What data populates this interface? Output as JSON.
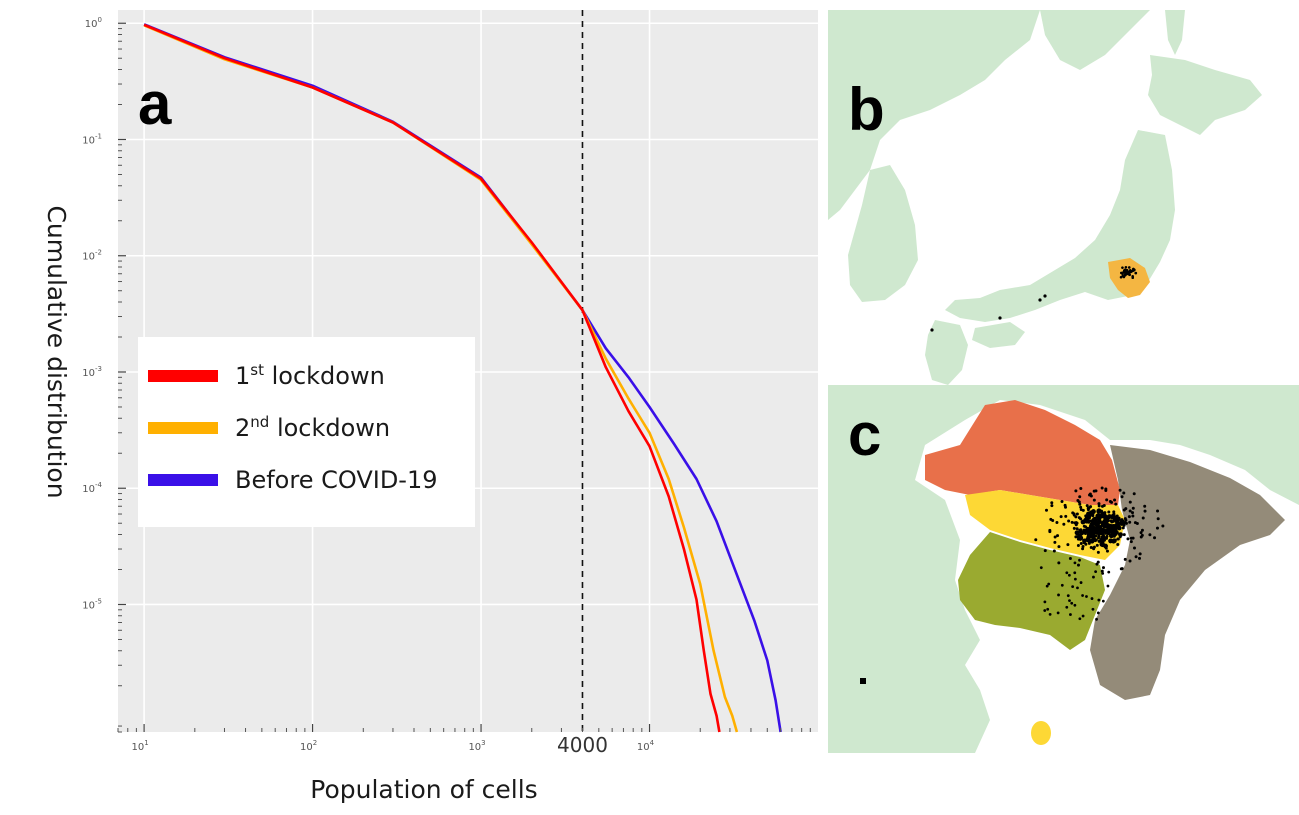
{
  "panels": {
    "a": "a",
    "b": "b",
    "c": "c"
  },
  "chart_data": {
    "type": "line",
    "title": "",
    "xlabel": "Population of cells",
    "ylabel": "Cumulative distribution",
    "x_scale": "log",
    "y_scale": "log",
    "xlim": [
      7,
      100000
    ],
    "ylim": [
      8e-07,
      1.3
    ],
    "x_ticks": [
      {
        "value": 10,
        "base": "10",
        "exp": "1"
      },
      {
        "value": 100,
        "base": "10",
        "exp": "2"
      },
      {
        "value": 1000,
        "base": "10",
        "exp": "3"
      },
      {
        "value": 10000,
        "base": "10",
        "exp": "4"
      }
    ],
    "y_ticks": [
      {
        "value": 1,
        "base": "10",
        "exp": "0"
      },
      {
        "value": 0.1,
        "base": "10",
        "exp": "-1"
      },
      {
        "value": 0.01,
        "base": "10",
        "exp": "-2"
      },
      {
        "value": 0.001,
        "base": "10",
        "exp": "-3"
      },
      {
        "value": 0.0001,
        "base": "10",
        "exp": "-4"
      },
      {
        "value": 1e-05,
        "base": "10",
        "exp": "-5"
      }
    ],
    "marker": {
      "value": 4000,
      "label": "4000",
      "style": "dashed"
    },
    "grid": true,
    "legend_position": "middle-left",
    "series": [
      {
        "name": "1st lockdown",
        "label_main": "1",
        "label_sup": "st",
        "label_rest": " lockdown",
        "color": "#ff0000",
        "x": [
          10,
          30,
          100,
          300,
          1000,
          2000,
          4000,
          5500,
          7500,
          10000,
          13000,
          16000,
          19000,
          21000,
          23000,
          25000,
          26000
        ],
        "y": [
          0.97,
          0.5,
          0.28,
          0.14,
          0.046,
          0.013,
          0.0034,
          0.0011,
          0.00046,
          0.00023,
          8.5e-05,
          3e-05,
          1.1e-05,
          4e-06,
          1.7e-06,
          1.1e-06,
          8e-07
        ]
      },
      {
        "name": "2nd lockdown",
        "label_main": "2",
        "label_sup": "nd",
        "label_rest": " lockdown",
        "color": "#ffb000",
        "x": [
          10,
          30,
          100,
          300,
          1000,
          2000,
          4000,
          5500,
          7500,
          10000,
          13000,
          16000,
          20000,
          24000,
          28000,
          31000,
          33000
        ],
        "y": [
          0.96,
          0.49,
          0.28,
          0.14,
          0.045,
          0.0125,
          0.0034,
          0.0013,
          0.00059,
          0.0003,
          0.00012,
          4.6e-05,
          1.5e-05,
          4e-06,
          1.6e-06,
          1.1e-06,
          8e-07
        ]
      },
      {
        "name": "Before COVID-19",
        "label_main": "Before COVID-19",
        "label_sup": "",
        "label_rest": "",
        "color": "#3a10e8",
        "x": [
          10,
          30,
          100,
          300,
          1000,
          2000,
          4000,
          5500,
          7500,
          10000,
          14000,
          19000,
          25000,
          33000,
          42000,
          50000,
          56000,
          60000
        ],
        "y": [
          0.98,
          0.51,
          0.29,
          0.142,
          0.047,
          0.0128,
          0.0034,
          0.0016,
          0.0009,
          0.0005,
          0.00024,
          0.00012,
          5.2e-05,
          1.8e-05,
          7.2e-06,
          3.3e-06,
          1.5e-06,
          8e-07
        ]
      }
    ]
  },
  "map_colors": {
    "land": "#cfe8cf",
    "sea": "#ffffff",
    "region_north": "#e8704a",
    "region_tokyo": "#fdd835",
    "region_south": "#9aaa30",
    "region_east": "#948b79",
    "region_island": "#fdd835",
    "dense_points": "#000000",
    "highlight": "#f4b642"
  }
}
